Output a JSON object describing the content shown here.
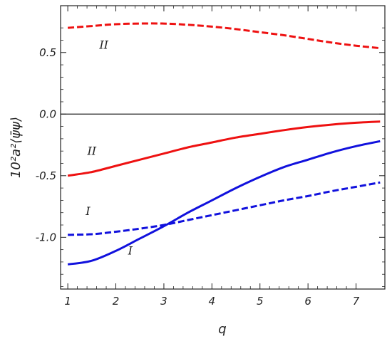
{
  "chart_data": {
    "type": "line",
    "xlabel": "q",
    "ylabel": "10²a²⟨ψ̄ψ⟩",
    "xlim": [
      0.85,
      7.6
    ],
    "ylim": [
      -1.42,
      0.88
    ],
    "xticks": [
      1,
      2,
      3,
      4,
      5,
      6,
      7
    ],
    "yticks": [
      -1.0,
      -0.5,
      0.0,
      0.5
    ],
    "ytick_labels": [
      "-1.0",
      "-0.5",
      "0.0",
      "0.5"
    ],
    "zero_line": true,
    "grid": false,
    "series": [
      {
        "color": "#ee1111",
        "dash": "dashed",
        "points": [
          [
            1.0,
            0.7
          ],
          [
            1.5,
            0.715
          ],
          [
            2.0,
            0.73
          ],
          [
            2.5,
            0.735
          ],
          [
            3.0,
            0.735
          ],
          [
            3.5,
            0.725
          ],
          [
            4.0,
            0.71
          ],
          [
            4.5,
            0.69
          ],
          [
            5.0,
            0.665
          ],
          [
            5.5,
            0.64
          ],
          [
            6.0,
            0.61
          ],
          [
            6.5,
            0.58
          ],
          [
            7.0,
            0.555
          ],
          [
            7.5,
            0.535
          ]
        ]
      },
      {
        "color": "#ee1111",
        "dash": "solid",
        "points": [
          [
            1.0,
            -0.5
          ],
          [
            1.5,
            -0.47
          ],
          [
            2.0,
            -0.42
          ],
          [
            2.5,
            -0.37
          ],
          [
            3.0,
            -0.32
          ],
          [
            3.5,
            -0.27
          ],
          [
            4.0,
            -0.23
          ],
          [
            4.5,
            -0.19
          ],
          [
            5.0,
            -0.16
          ],
          [
            5.5,
            -0.13
          ],
          [
            6.0,
            -0.105
          ],
          [
            6.5,
            -0.085
          ],
          [
            7.0,
            -0.07
          ],
          [
            7.5,
            -0.06
          ]
        ]
      },
      {
        "color": "#1111dd",
        "dash": "dashed",
        "points": [
          [
            1.0,
            -0.98
          ],
          [
            1.5,
            -0.975
          ],
          [
            2.0,
            -0.955
          ],
          [
            2.5,
            -0.93
          ],
          [
            3.0,
            -0.9
          ],
          [
            3.5,
            -0.86
          ],
          [
            4.0,
            -0.82
          ],
          [
            4.5,
            -0.78
          ],
          [
            5.0,
            -0.74
          ],
          [
            5.5,
            -0.7
          ],
          [
            6.0,
            -0.665
          ],
          [
            6.5,
            -0.625
          ],
          [
            7.0,
            -0.59
          ],
          [
            7.5,
            -0.555
          ]
        ]
      },
      {
        "color": "#1111dd",
        "dash": "solid",
        "points": [
          [
            1.0,
            -1.22
          ],
          [
            1.5,
            -1.19
          ],
          [
            2.0,
            -1.11
          ],
          [
            2.5,
            -1.01
          ],
          [
            3.0,
            -0.91
          ],
          [
            3.5,
            -0.8
          ],
          [
            4.0,
            -0.7
          ],
          [
            4.5,
            -0.6
          ],
          [
            5.0,
            -0.51
          ],
          [
            5.5,
            -0.43
          ],
          [
            6.0,
            -0.37
          ],
          [
            6.5,
            -0.31
          ],
          [
            7.0,
            -0.26
          ],
          [
            7.5,
            -0.22
          ]
        ]
      }
    ],
    "annotations": [
      {
        "text": "II",
        "x": 1.75,
        "y": 0.53
      },
      {
        "text": "II",
        "x": 1.5,
        "y": -0.33
      },
      {
        "text": "I",
        "x": 1.42,
        "y": -0.82
      },
      {
        "text": "I",
        "x": 2.3,
        "y": -1.14
      }
    ]
  }
}
